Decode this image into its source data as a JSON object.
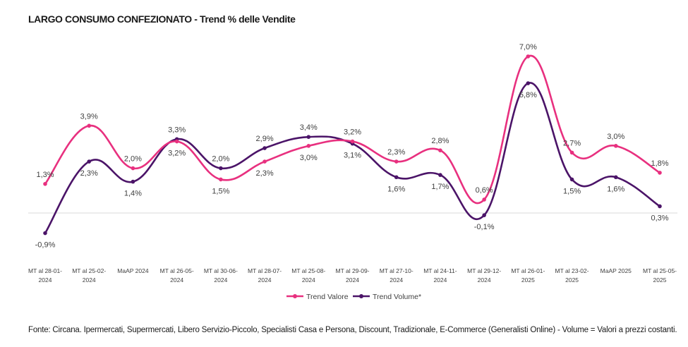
{
  "title": "LARGO CONSUMO CONFEZIONATO - Trend % delle Vendite",
  "footer": "Fonte: Circana. Ipermercati, Supermercati, Libero Servizio-Piccolo, Specialisti Casa e Persona, Discount, Tradizionale, E-Commerce (Generalisti Online) - Volume = Valori a prezzi costanti.",
  "colors": {
    "valore": "#e8307f",
    "volume": "#4b1468",
    "axis": "#d9d9d9"
  },
  "chart_data": {
    "type": "line",
    "categories": [
      [
        "MT al 28-01-",
        "2024"
      ],
      [
        "MT al 25-02-",
        "2024"
      ],
      [
        "MaAP 2024"
      ],
      [
        "MT al 26-05-",
        "2024"
      ],
      [
        "MT al 30-06-",
        "2024"
      ],
      [
        "MT al 28-07-",
        "2024"
      ],
      [
        "MT al 25-08-",
        "2024"
      ],
      [
        "MT al 29-09-",
        "2024"
      ],
      [
        "MT al 27-10-",
        "2024"
      ],
      [
        "MT al 24-11-",
        "2024"
      ],
      [
        "MT al 29-12-",
        "2024"
      ],
      [
        "MT al 26-01-",
        "2025"
      ],
      [
        "MT al 23-02-",
        "2025"
      ],
      [
        "MaAP 2025"
      ],
      [
        "MT al 25-05-",
        "2025"
      ]
    ],
    "series": [
      {
        "name": "Trend Valore",
        "values": [
          1.3,
          3.9,
          2.0,
          3.2,
          1.5,
          2.3,
          3.0,
          3.2,
          2.3,
          2.8,
          0.6,
          7.0,
          2.7,
          3.0,
          1.8
        ],
        "labels": [
          "1,3%",
          "3,9%",
          "2,0%",
          "3,2%",
          "1,5%",
          "2,3%",
          "3,0%",
          "3,2%",
          "2,3%",
          "2,8%",
          "0,6%",
          "7,0%",
          "2,7%",
          "3,0%",
          "1,8%"
        ]
      },
      {
        "name": "Trend Volume*",
        "values": [
          -0.9,
          2.3,
          1.4,
          3.3,
          2.0,
          2.9,
          3.4,
          3.1,
          1.6,
          1.7,
          -0.1,
          5.8,
          1.5,
          1.6,
          0.3
        ],
        "labels": [
          "-0,9%",
          "2,3%",
          "1,4%",
          "3,3%",
          "2,0%",
          "2,9%",
          "3,4%",
          "3,1%",
          "1,6%",
          "1,7%",
          "-0,1%",
          "5,8%",
          "1,5%",
          "1,6%",
          "0,3%"
        ]
      }
    ],
    "ylim": [
      -1.5,
      8
    ],
    "grid": false,
    "legend": "bottom-center"
  }
}
